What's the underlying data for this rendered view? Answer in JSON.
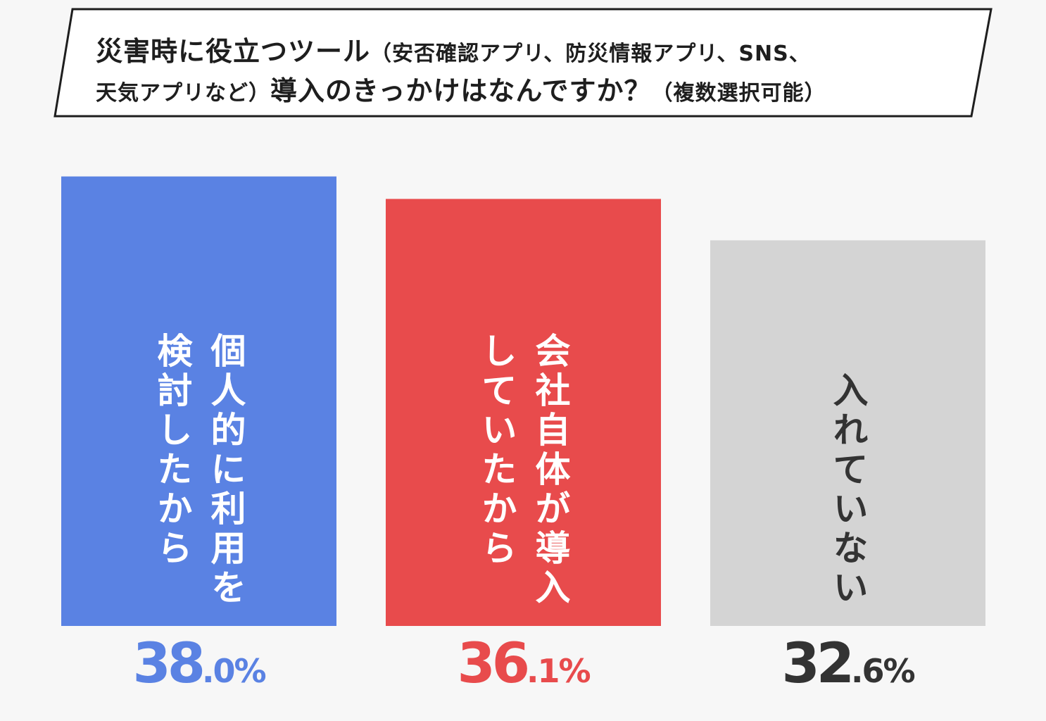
{
  "title": {
    "line1_main": "災害時に役立つツール",
    "line1_sub": "（安否確認アプリ、防災情報アプリ、SNS、",
    "line2_sub_a": "天気アプリなど）",
    "line2_main": "導入のきっかけはなんですか？",
    "line2_sub_b": "（複数選択可能）"
  },
  "chart_data": {
    "type": "bar",
    "categories": [
      "個人的に利用を検討したから",
      "会社自体が導入していたから",
      "入れていない"
    ],
    "values": [
      38.0,
      36.1,
      32.6
    ],
    "unit": "%",
    "colors": [
      "#5a82e3",
      "#e84b4c",
      "#d4d4d4"
    ],
    "value_colors": [
      "#5a82e3",
      "#e84b4c",
      "#333333"
    ],
    "bar_label_colors": [
      "#ffffff",
      "#ffffff",
      "#333333"
    ],
    "value_text": [
      {
        "int": "38",
        "dec": ".0%"
      },
      {
        "int": "36",
        "dec": ".1%"
      },
      {
        "int": "32",
        "dec": ".6%"
      }
    ],
    "bar_label_lines": [
      [
        "個人的に利用を",
        "検討したから"
      ],
      [
        "会社自体が導入",
        "していたから"
      ],
      [
        "入れていない"
      ]
    ]
  }
}
